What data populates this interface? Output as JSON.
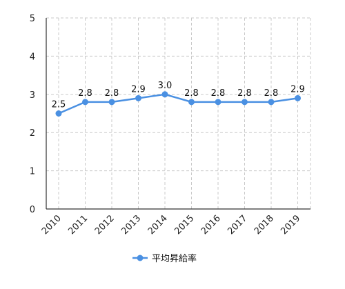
{
  "chart_data": {
    "type": "line",
    "categories": [
      "2010",
      "2011",
      "2012",
      "2013",
      "2014",
      "2015",
      "2016",
      "2017",
      "2018",
      "2019"
    ],
    "series": [
      {
        "name": "平均昇給率",
        "values": [
          2.5,
          2.8,
          2.8,
          2.9,
          3.0,
          2.8,
          2.8,
          2.8,
          2.8,
          2.9
        ],
        "color": "#4a90e2"
      }
    ],
    "data_labels": [
      "2.5",
      "2.8",
      "2.8",
      "2.9",
      "3.0",
      "2.8",
      "2.8",
      "2.8",
      "2.8",
      "2.9"
    ],
    "y_ticks": [
      "0",
      "1",
      "2",
      "3",
      "4",
      "5"
    ],
    "ylim": [
      0,
      5
    ],
    "title": "",
    "xlabel": "",
    "ylabel": "",
    "grid": true,
    "grid_style": "dashed",
    "legend_position": "bottom"
  }
}
